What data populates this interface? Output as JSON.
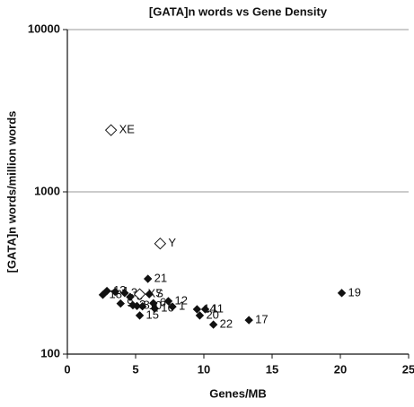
{
  "chart_data": {
    "type": "scatter",
    "title": "[GATA]n words vs Gene Density",
    "x_label": "Genes/MB",
    "y_label": "[GATA]n words/million words",
    "xlim": [
      0,
      25
    ],
    "xticks": [
      0,
      5,
      10,
      15,
      20,
      25
    ],
    "ylim": [
      100,
      10000
    ],
    "yticks": [
      100,
      1000,
      10000
    ],
    "log_y": true,
    "grid": true,
    "series": [
      {
        "marker": "filled",
        "color": "#111111",
        "labels": [
          "13",
          "18",
          "4",
          "3",
          "5",
          "9",
          "2",
          "8",
          "15",
          "10",
          "21",
          "7",
          "6",
          "16",
          "12",
          "1",
          "14",
          "11",
          "20",
          "22",
          "17",
          "19"
        ],
        "x": [
          2.9,
          2.6,
          3.5,
          4.2,
          4.6,
          3.9,
          4.8,
          5.1,
          5.3,
          5.5,
          5.9,
          6.0,
          6.3,
          6.4,
          7.4,
          7.7,
          9.5,
          10.1,
          9.7,
          10.7,
          13.3,
          20.1
        ],
        "values": [
          245,
          232,
          242,
          238,
          225,
          205,
          200,
          198,
          173,
          197,
          291,
          234,
          206,
          191,
          212,
          196,
          189,
          189,
          173,
          152,
          162,
          238
        ]
      },
      {
        "marker": "open",
        "color": "#111111",
        "labels": [
          "XE",
          "Y",
          "XS"
        ],
        "x": [
          3.2,
          6.8,
          5.3
        ],
        "values": [
          2400,
          480,
          234
        ]
      }
    ]
  }
}
